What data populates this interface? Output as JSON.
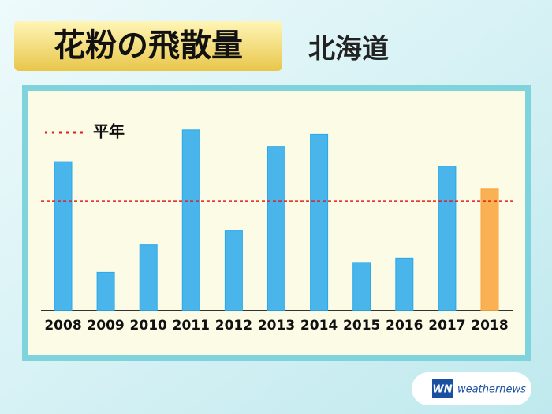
{
  "chart_data": {
    "type": "bar",
    "title": "花粉の飛散量",
    "subtitle": "北海道",
    "categories": [
      "2008",
      "2009",
      "2010",
      "2011",
      "2012",
      "2013",
      "2014",
      "2015",
      "2016",
      "2017",
      "2018"
    ],
    "values": [
      136,
      35,
      60,
      165,
      73,
      150,
      161,
      44,
      48,
      132,
      111
    ],
    "colors": [
      "#29a8ea",
      "#29a8ea",
      "#29a8ea",
      "#29a8ea",
      "#29a8ea",
      "#29a8ea",
      "#29a8ea",
      "#29a8ea",
      "#29a8ea",
      "#29a8ea",
      "#f9a33a"
    ],
    "ylim": [
      0,
      180
    ],
    "average": {
      "label": "平年",
      "value": 100,
      "color": "#e0201c"
    },
    "logo": {
      "mark": "WN",
      "text": "weathernews"
    }
  }
}
